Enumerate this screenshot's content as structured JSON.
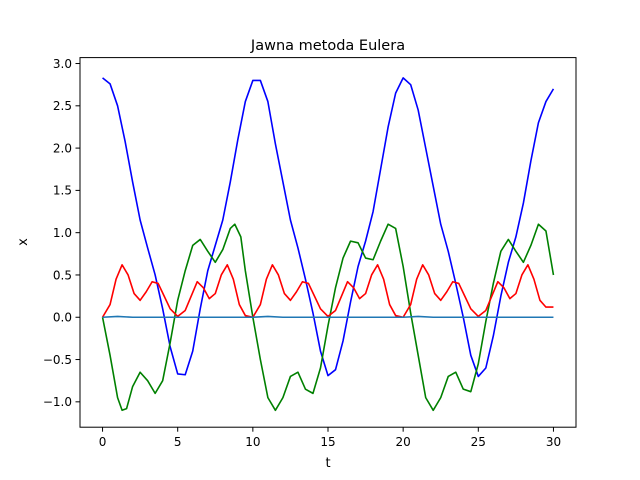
{
  "chart_data": {
    "type": "line",
    "title": "Jawna metoda Eulera",
    "xlabel": "t",
    "ylabel": "x",
    "xlim": [
      -1.5,
      31.5
    ],
    "ylim": [
      -1.3,
      3.07
    ],
    "grid": false,
    "legend": "none",
    "x_ticks": [
      0,
      5,
      10,
      15,
      20,
      25,
      30
    ],
    "x_tick_labels": [
      "0",
      "5",
      "10",
      "15",
      "20",
      "25",
      "30"
    ],
    "y_ticks": [
      -1.0,
      -0.5,
      0.0,
      0.5,
      1.0,
      1.5,
      2.0,
      2.5,
      3.0
    ],
    "y_tick_labels": [
      "−1.0",
      "−0.5",
      "0.0",
      "0.5",
      "1.0",
      "1.5",
      "2.0",
      "2.5",
      "3.0"
    ],
    "series": [
      {
        "color": "#0000ff",
        "x": [
          0,
          0.5,
          1,
          1.5,
          2,
          2.5,
          3,
          3.5,
          4,
          4.5,
          5,
          5.5,
          6,
          6.5,
          7,
          7.5,
          8,
          8.5,
          9,
          9.5,
          10,
          10.5,
          11,
          11.5,
          12,
          12.5,
          13,
          13.5,
          14,
          14.5,
          15,
          15.5,
          16,
          16.5,
          17,
          17.5,
          18,
          18.5,
          19,
          19.5,
          20,
          20.5,
          21,
          21.5,
          22,
          22.5,
          23,
          23.5,
          24,
          24.5,
          25,
          25.5,
          26,
          26.5,
          27,
          27.5,
          28,
          28.5,
          29,
          29.5,
          30
        ],
        "y": [
          2.83,
          2.76,
          2.5,
          2.08,
          1.6,
          1.15,
          0.82,
          0.5,
          0.1,
          -0.35,
          -0.67,
          -0.68,
          -0.4,
          0.1,
          0.55,
          0.85,
          1.15,
          1.6,
          2.1,
          2.55,
          2.8,
          2.8,
          2.55,
          2.05,
          1.6,
          1.15,
          0.82,
          0.45,
          0.05,
          -0.4,
          -0.69,
          -0.62,
          -0.28,
          0.18,
          0.6,
          0.9,
          1.25,
          1.75,
          2.25,
          2.65,
          2.83,
          2.75,
          2.45,
          2.0,
          1.55,
          1.1,
          0.78,
          0.4,
          0.0,
          -0.45,
          -0.7,
          -0.6,
          -0.22,
          0.25,
          0.65,
          0.95,
          1.35,
          1.85,
          2.3,
          2.55,
          2.7
        ]
      },
      {
        "color": "#008000",
        "x": [
          0,
          0.5,
          1,
          1.3,
          1.6,
          2,
          2.5,
          3,
          3.5,
          4,
          4.5,
          5,
          5.5,
          6,
          6.5,
          7,
          7.5,
          8,
          8.5,
          8.8,
          9.2,
          9.5,
          10,
          10.5,
          11,
          11.5,
          12,
          12.5,
          13,
          13.5,
          14,
          14.5,
          15,
          15.5,
          16,
          16.5,
          17,
          17.5,
          18,
          18.5,
          19,
          19.5,
          20,
          20.5,
          21,
          21.5,
          22,
          22.5,
          23,
          23.5,
          24,
          24.5,
          25,
          25.5,
          26,
          26.5,
          27,
          27.5,
          28,
          28.5,
          29,
          29.5,
          30
        ],
        "y": [
          0.0,
          -0.45,
          -0.95,
          -1.1,
          -1.08,
          -0.82,
          -0.65,
          -0.75,
          -0.9,
          -0.75,
          -0.3,
          0.2,
          0.55,
          0.85,
          0.92,
          0.78,
          0.65,
          0.8,
          1.05,
          1.1,
          0.95,
          0.55,
          0.0,
          -0.5,
          -0.95,
          -1.1,
          -0.95,
          -0.7,
          -0.65,
          -0.85,
          -0.9,
          -0.6,
          -0.1,
          0.35,
          0.7,
          0.9,
          0.88,
          0.7,
          0.68,
          0.9,
          1.1,
          1.05,
          0.6,
          0.05,
          -0.45,
          -0.95,
          -1.1,
          -0.95,
          -0.7,
          -0.65,
          -0.85,
          -0.88,
          -0.55,
          -0.05,
          0.4,
          0.78,
          0.92,
          0.78,
          0.65,
          0.85,
          1.1,
          1.02,
          0.5
        ]
      },
      {
        "color": "#ff0000",
        "x": [
          0,
          0.5,
          0.9,
          1.3,
          1.7,
          2.1,
          2.5,
          2.9,
          3.3,
          3.7,
          4.1,
          4.5,
          5,
          5.5,
          5.9,
          6.3,
          6.7,
          7.1,
          7.5,
          7.9,
          8.3,
          8.7,
          9.1,
          9.5,
          10,
          10.5,
          10.9,
          11.3,
          11.7,
          12.1,
          12.5,
          12.9,
          13.3,
          13.7,
          14.1,
          14.5,
          15,
          15.5,
          15.9,
          16.3,
          16.7,
          17.1,
          17.5,
          17.9,
          18.3,
          18.7,
          19.1,
          19.5,
          20,
          20.5,
          20.9,
          21.3,
          21.7,
          22.1,
          22.5,
          22.9,
          23.3,
          23.7,
          24.1,
          24.5,
          25,
          25.5,
          25.9,
          26.3,
          26.7,
          27.1,
          27.5,
          27.9,
          28.3,
          28.7,
          29.1,
          29.5,
          30
        ],
        "y": [
          0.0,
          0.15,
          0.45,
          0.62,
          0.5,
          0.28,
          0.2,
          0.3,
          0.42,
          0.4,
          0.25,
          0.1,
          0.01,
          0.08,
          0.25,
          0.42,
          0.35,
          0.22,
          0.28,
          0.5,
          0.62,
          0.45,
          0.15,
          0.02,
          0.0,
          0.15,
          0.45,
          0.62,
          0.5,
          0.28,
          0.2,
          0.3,
          0.42,
          0.4,
          0.25,
          0.1,
          0.01,
          0.08,
          0.25,
          0.42,
          0.35,
          0.22,
          0.28,
          0.5,
          0.62,
          0.45,
          0.15,
          0.02,
          0.0,
          0.15,
          0.45,
          0.62,
          0.5,
          0.28,
          0.2,
          0.3,
          0.42,
          0.4,
          0.25,
          0.1,
          0.01,
          0.08,
          0.25,
          0.42,
          0.35,
          0.22,
          0.28,
          0.5,
          0.62,
          0.45,
          0.2,
          0.12,
          0.12
        ]
      },
      {
        "color": "#1f77b4",
        "x": [
          0,
          1,
          2,
          3,
          4,
          5,
          6,
          7,
          8,
          9,
          10,
          11,
          12,
          13,
          14,
          15,
          16,
          17,
          18,
          19,
          20,
          21,
          22,
          23,
          24,
          25,
          26,
          27,
          28,
          29,
          30
        ],
        "y": [
          0.0,
          0.01,
          0.0,
          0.0,
          0.0,
          0.0,
          0.0,
          0.0,
          0.0,
          0.0,
          0.0,
          0.01,
          0.0,
          0.0,
          0.0,
          0.0,
          0.0,
          0.0,
          0.0,
          0.0,
          0.0,
          0.01,
          0.0,
          0.0,
          0.0,
          0.0,
          0.0,
          0.0,
          0.0,
          0.0,
          0.0
        ]
      }
    ]
  }
}
